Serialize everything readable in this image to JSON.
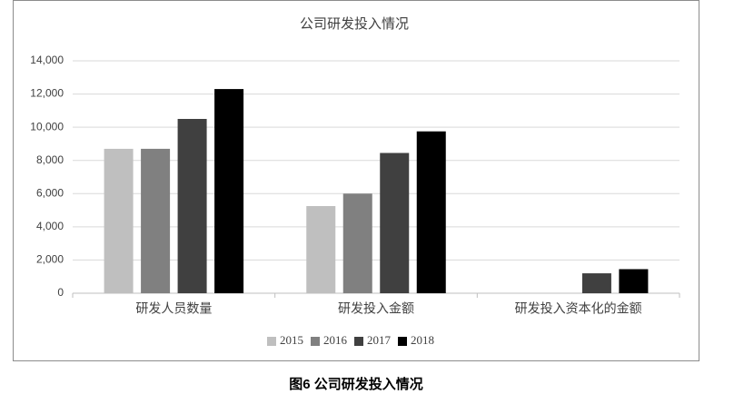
{
  "chart_data": {
    "type": "bar",
    "title": "公司研发投入情况",
    "categories": [
      "研发人员数量",
      "研发投入金额",
      "研发投入资本化的金额"
    ],
    "series": [
      {
        "name": "2015",
        "color": "#bfbfbf",
        "values": [
          8700,
          5250,
          null
        ]
      },
      {
        "name": "2016",
        "color": "#808080",
        "values": [
          8700,
          6000,
          null
        ]
      },
      {
        "name": "2017",
        "color": "#404040",
        "values": [
          10500,
          8450,
          1200
        ]
      },
      {
        "name": "2018",
        "color": "#000000",
        "values": [
          12300,
          9750,
          1450
        ]
      }
    ],
    "ylim": [
      0,
      14000
    ],
    "yticks": [
      0,
      {
        "value": 2000,
        "label": "2,000"
      },
      {
        "value": 4000,
        "label": "4,000"
      },
      {
        "value": 6000,
        "label": "6,000"
      },
      {
        "value": 8000,
        "label": "8,000"
      },
      {
        "value": 10000,
        "label": "10,000"
      },
      {
        "value": 12000,
        "label": "12,000"
      },
      {
        "value": 14000,
        "label": "14,000"
      }
    ],
    "grid": true,
    "legend": "bottom"
  },
  "caption": "图6  公司研发投入情况"
}
